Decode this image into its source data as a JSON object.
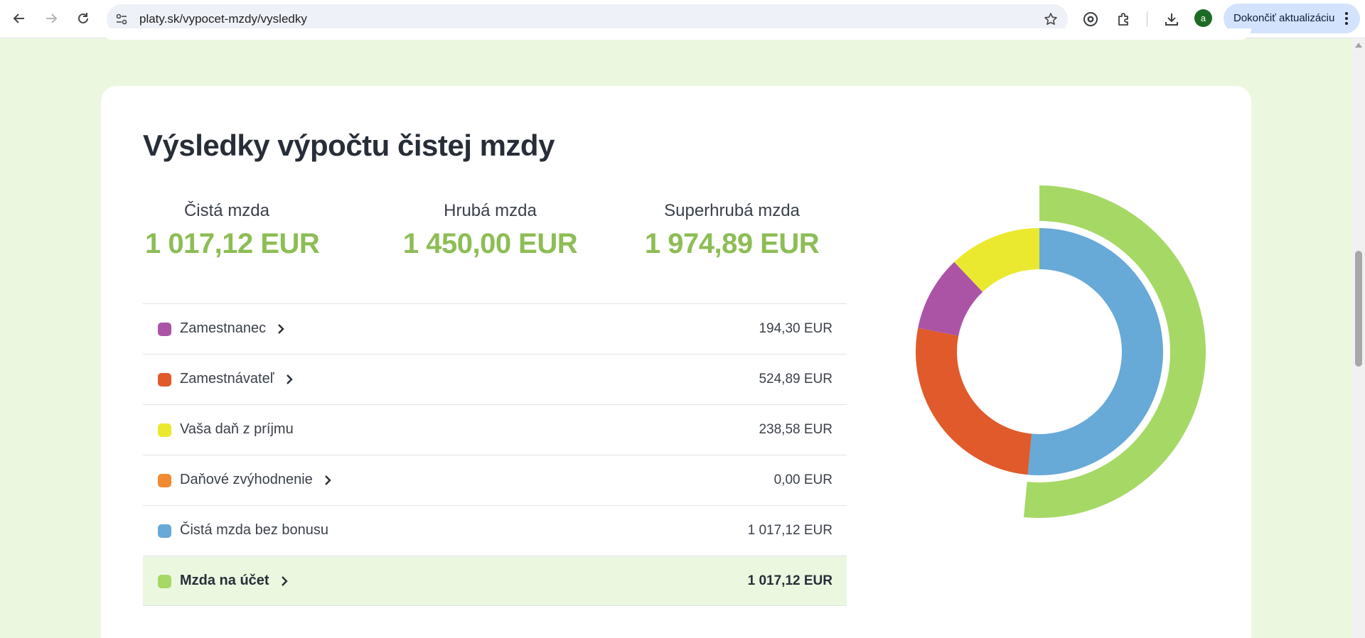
{
  "browser": {
    "url": "platy.sk/vypocet-mzdy/vysledky",
    "avatar_letter": "a",
    "update_button": "Dokončiť aktualizáciu"
  },
  "page": {
    "title": "Výsledky výpočtu čistej mzdy",
    "summary": [
      {
        "label": "Čistá mzda",
        "value": "1 017,12 EUR"
      },
      {
        "label": "Hrubá mzda",
        "value": "1 450,00 EUR"
      },
      {
        "label": "Superhrubá mzda",
        "value": "1 974,89 EUR"
      }
    ],
    "breakdown": [
      {
        "label": "Zamestnanec",
        "value": "194,30 EUR",
        "color": "#ab54a6",
        "has_chevron": true,
        "bold": false
      },
      {
        "label": "Zamestnávateľ",
        "value": "524,89 EUR",
        "color": "#e05a2b",
        "has_chevron": true,
        "bold": false
      },
      {
        "label": "Vaša daň z príjmu",
        "value": "238,58 EUR",
        "color": "#ebe92f",
        "has_chevron": false,
        "bold": false
      },
      {
        "label": "Daňové zvýhodnenie",
        "value": "0,00 EUR",
        "color": "#f08a33",
        "has_chevron": true,
        "bold": false
      },
      {
        "label": "Čistá mzda bez bonusu",
        "value": "1 017,12 EUR",
        "color": "#67a9d7",
        "has_chevron": false,
        "bold": false
      },
      {
        "label": "Mzda na účet",
        "value": "1 017,12 EUR",
        "color": "#a6d866",
        "has_chevron": true,
        "bold": true
      }
    ]
  },
  "chart_data": {
    "type": "pie",
    "rings": [
      {
        "ring": "inner",
        "slices": [
          {
            "label": "Čistá mzda bez bonusu",
            "value": 1017.12,
            "color": "#67a9d7"
          },
          {
            "label": "Zamestnávateľ",
            "value": 524.89,
            "color": "#e05a2b"
          },
          {
            "label": "Zamestnanec",
            "value": 194.3,
            "color": "#ab54a6"
          },
          {
            "label": "Vaša daň z príjmu",
            "value": 238.58,
            "color": "#ebe92f"
          }
        ]
      },
      {
        "ring": "outer",
        "slices": [
          {
            "label": "Mzda na účet",
            "value": 1017.12,
            "color": "#a6d866"
          }
        ]
      }
    ]
  }
}
